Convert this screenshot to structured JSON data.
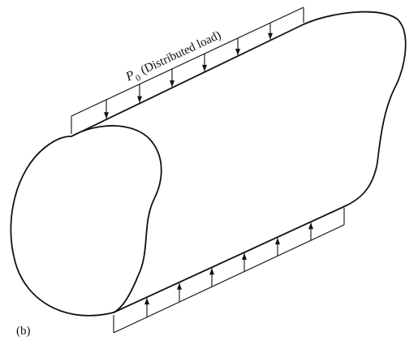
{
  "figure": {
    "load_label_symbol": "P",
    "load_label_subscript": "0",
    "load_label_text": "(Distributed load)",
    "panel_label": "(b)",
    "line_color": "#111111",
    "background_color": "#ffffff"
  }
}
